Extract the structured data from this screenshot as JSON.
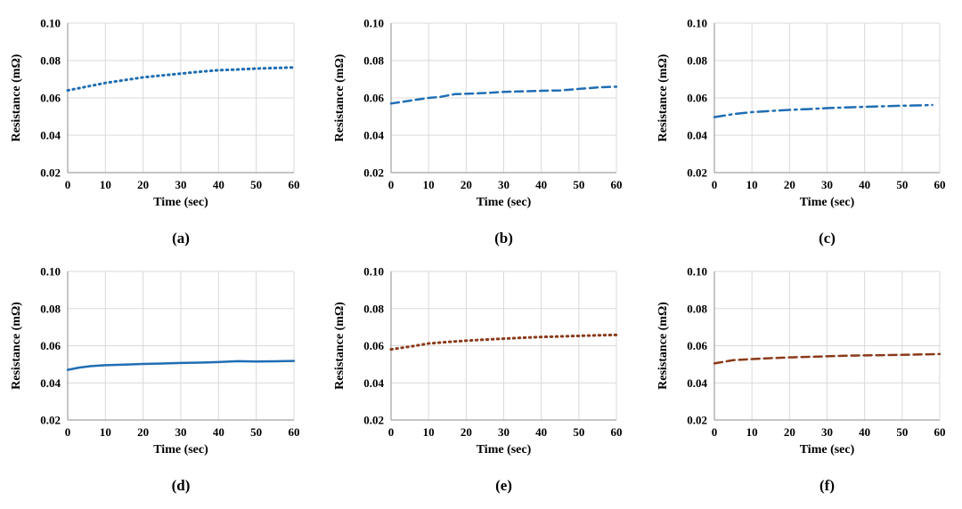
{
  "chart_data": [
    {
      "type": "line",
      "panel": "(a)",
      "xlabel": "Time (sec)",
      "ylabel": "Resistance (mΩ)",
      "xlim": [
        0,
        60
      ],
      "ylim": [
        0.02,
        0.1
      ],
      "xticks": [
        0,
        10,
        20,
        30,
        40,
        50,
        60
      ],
      "yticks": [
        "0.02",
        "0.04",
        "0.06",
        "0.08",
        "0.10"
      ],
      "grid": true,
      "series": [
        {
          "color": "#1f6eb4",
          "style": "dotted",
          "x": [
            0,
            5,
            10,
            15,
            20,
            25,
            30,
            35,
            40,
            45,
            50,
            55,
            60
          ],
          "y": [
            0.064,
            0.066,
            0.068,
            0.0695,
            0.071,
            0.072,
            0.073,
            0.074,
            0.0748,
            0.0752,
            0.0757,
            0.076,
            0.0763
          ]
        }
      ]
    },
    {
      "type": "line",
      "panel": "(b)",
      "xlabel": "Time (sec)",
      "ylabel": "Resistance (mΩ)",
      "xlim": [
        0,
        60
      ],
      "ylim": [
        0.02,
        0.1
      ],
      "xticks": [
        0,
        10,
        20,
        30,
        40,
        50,
        60
      ],
      "yticks": [
        "0.02",
        "0.04",
        "0.06",
        "0.08",
        "0.10"
      ],
      "grid": true,
      "series": [
        {
          "color": "#1f6eb4",
          "style": "dashed",
          "x": [
            0,
            5,
            10,
            13,
            17,
            20,
            25,
            30,
            35,
            40,
            45,
            50,
            55,
            60
          ],
          "y": [
            0.057,
            0.0585,
            0.06,
            0.0605,
            0.062,
            0.0622,
            0.0626,
            0.0632,
            0.0635,
            0.0638,
            0.064,
            0.0648,
            0.0656,
            0.066
          ]
        }
      ]
    },
    {
      "type": "line",
      "panel": "(c)",
      "xlabel": "Time (sec)",
      "ylabel": "Resistance (mΩ)",
      "xlim": [
        0,
        60
      ],
      "ylim": [
        0.02,
        0.1
      ],
      "xticks": [
        0,
        10,
        20,
        30,
        40,
        50,
        60
      ],
      "yticks": [
        "0.02",
        "0.04",
        "0.06",
        "0.08",
        "0.10"
      ],
      "grid": true,
      "series": [
        {
          "color": "#1f6eb4",
          "style": "dashdot",
          "x": [
            0,
            5,
            10,
            15,
            20,
            25,
            30,
            35,
            40,
            45,
            50,
            55,
            58
          ],
          "y": [
            0.0497,
            0.0513,
            0.0524,
            0.053,
            0.0536,
            0.054,
            0.0545,
            0.0549,
            0.0552,
            0.0555,
            0.0558,
            0.056,
            0.0562
          ]
        }
      ]
    },
    {
      "type": "line",
      "panel": "(d)",
      "xlabel": "Time (sec)",
      "ylabel": "Resistance (mΩ)",
      "xlim": [
        0,
        60
      ],
      "ylim": [
        0.02,
        0.1
      ],
      "xticks": [
        0,
        10,
        20,
        30,
        40,
        50,
        60
      ],
      "yticks": [
        "0.02",
        "0.04",
        "0.06",
        "0.08",
        "0.10"
      ],
      "grid": true,
      "series": [
        {
          "color": "#1f6eb4",
          "style": "solid",
          "x": [
            0,
            3,
            6,
            10,
            15,
            20,
            25,
            30,
            35,
            40,
            45,
            50,
            55,
            60
          ],
          "y": [
            0.047,
            0.0482,
            0.049,
            0.0495,
            0.0498,
            0.0502,
            0.0504,
            0.0507,
            0.0509,
            0.0512,
            0.0517,
            0.0515,
            0.0516,
            0.0518
          ]
        }
      ]
    },
    {
      "type": "line",
      "panel": "(e)",
      "xlabel": "Time (sec)",
      "ylabel": "Resistance (mΩ)",
      "xlim": [
        0,
        60
      ],
      "ylim": [
        0.02,
        0.1
      ],
      "xticks": [
        0,
        10,
        20,
        30,
        40,
        50,
        60
      ],
      "yticks": [
        "0.02",
        "0.04",
        "0.06",
        "0.08",
        "0.10"
      ],
      "grid": true,
      "series": [
        {
          "color": "#8b3a1a",
          "style": "dotted",
          "x": [
            0,
            5,
            10,
            15,
            20,
            25,
            30,
            35,
            40,
            45,
            50,
            55,
            60
          ],
          "y": [
            0.058,
            0.0595,
            0.0612,
            0.062,
            0.0627,
            0.0633,
            0.0638,
            0.0643,
            0.0647,
            0.065,
            0.0653,
            0.0656,
            0.0658
          ]
        }
      ]
    },
    {
      "type": "line",
      "panel": "(f)",
      "xlabel": "Time (sec)",
      "ylabel": "Resistance (mΩ)",
      "xlim": [
        0,
        60
      ],
      "ylim": [
        0.02,
        0.1
      ],
      "xticks": [
        0,
        10,
        20,
        30,
        40,
        50,
        60
      ],
      "yticks": [
        "0.02",
        "0.04",
        "0.06",
        "0.08",
        "0.10"
      ],
      "grid": true,
      "series": [
        {
          "color": "#8b3a1a",
          "style": "dashed",
          "x": [
            0,
            5,
            10,
            15,
            20,
            25,
            30,
            35,
            40,
            45,
            50,
            55,
            60
          ],
          "y": [
            0.0505,
            0.0522,
            0.0528,
            0.0533,
            0.0537,
            0.054,
            0.0543,
            0.0546,
            0.0548,
            0.0549,
            0.0551,
            0.0553,
            0.0555
          ]
        }
      ]
    }
  ]
}
